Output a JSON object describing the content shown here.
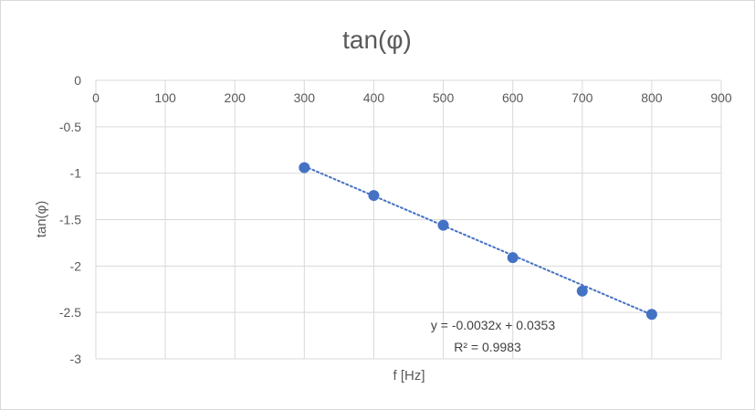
{
  "chart_data": {
    "type": "scatter",
    "title": "tan(φ)",
    "xlabel": "f [Hz]",
    "ylabel": "tan(φ)",
    "xlim": [
      0,
      900
    ],
    "ylim": [
      -3,
      0
    ],
    "x_ticks": [
      "0",
      "100",
      "200",
      "300",
      "400",
      "500",
      "600",
      "700",
      "800",
      "900"
    ],
    "y_ticks": [
      "0",
      "-0.5",
      "-1",
      "-1.5",
      "-2",
      "-2.5",
      "-3"
    ],
    "x_tick_values": [
      0,
      100,
      200,
      300,
      400,
      500,
      600,
      700,
      800,
      900
    ],
    "y_tick_values": [
      0,
      -0.5,
      -1,
      -1.5,
      -2,
      -2.5,
      -3
    ],
    "grid": true,
    "x_tick_position": "top",
    "series": [
      {
        "x": [
          300,
          400,
          500,
          600,
          700,
          800
        ],
        "y": [
          -0.94,
          -1.24,
          -1.56,
          -1.91,
          -2.27,
          -2.52
        ],
        "color": "#4472c4"
      }
    ],
    "trendline": {
      "type": "linear",
      "slope": -0.0032,
      "intercept": 0.0353,
      "x_range": [
        300,
        800
      ],
      "color": "#4472c4",
      "style": "dotted",
      "equation": "y = -0.0032x + 0.0353",
      "r_squared": "R² = 0.9983"
    }
  }
}
